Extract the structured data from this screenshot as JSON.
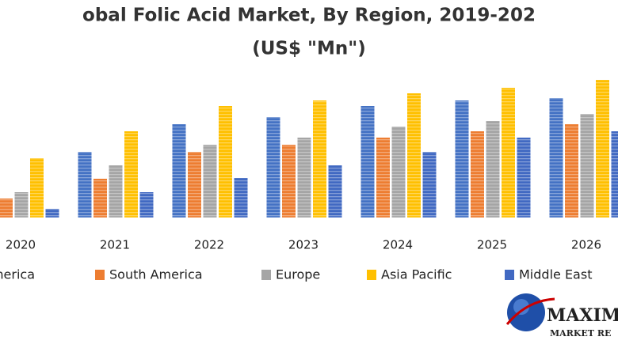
{
  "chart_data": {
    "type": "bar",
    "title": "obal Folic Acid Market, By Region, 2019-202",
    "subtitle": "(US$ \"Mn\")",
    "categories": [
      "2020",
      "2021",
      "2022",
      "2023",
      "2024",
      "2025",
      "2026"
    ],
    "series": [
      {
        "name": "America",
        "color": "#4472c4",
        "values": [
          null,
          83,
          118,
          127,
          141,
          148,
          151
        ]
      },
      {
        "name": "South America",
        "color": "#ed7d31",
        "values": [
          24,
          49,
          83,
          92,
          101,
          109,
          118
        ]
      },
      {
        "name": "Europe",
        "color": "#a5a5a5",
        "values": [
          32,
          66,
          92,
          101,
          115,
          122,
          131
        ]
      },
      {
        "name": "Asia Pacific",
        "color": "#ffc000",
        "values": [
          75,
          109,
          141,
          148,
          157,
          164,
          174
        ]
      },
      {
        "name": "Middle East",
        "color": "#4169c2",
        "values": [
          11,
          32,
          50,
          66,
          83,
          101,
          109
        ]
      }
    ]
  },
  "logo": {
    "name": "MAXIM",
    "tagline": "MARKET RE"
  }
}
